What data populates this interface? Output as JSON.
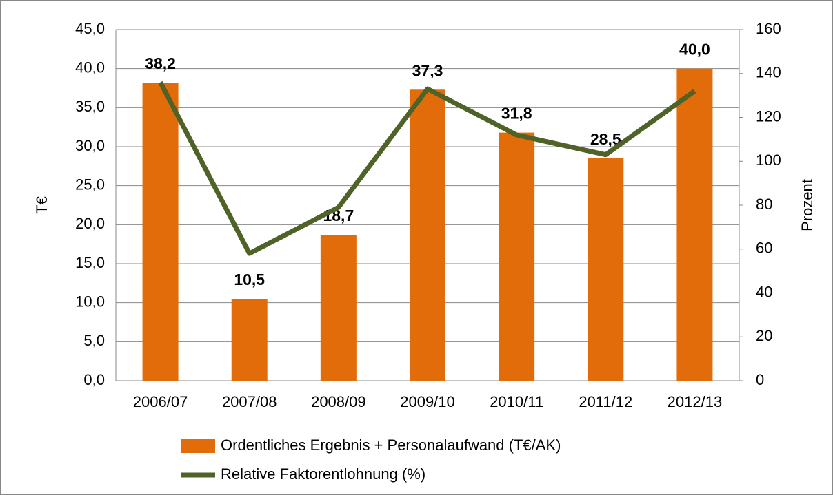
{
  "chart_data": {
    "type": "bar_line",
    "categories": [
      "2006/07",
      "2007/08",
      "2008/09",
      "2009/10",
      "2010/11",
      "2011/12",
      "2012/13"
    ],
    "series": [
      {
        "name": "Ordentliches Ergebnis + Personalaufwand (T€/AK)",
        "type": "bar",
        "color": "#e36c0a",
        "values": [
          38.2,
          10.5,
          18.7,
          37.3,
          31.8,
          28.5,
          40.0
        ],
        "value_labels": [
          "38,2",
          "10,5",
          "18,7",
          "37,3",
          "31,8",
          "28,5",
          "40,0"
        ]
      },
      {
        "name": "Relative Faktorentlohnung (%)",
        "type": "line",
        "color": "#4f6228",
        "axis": "y2",
        "values": [
          136,
          58,
          79,
          133,
          112,
          103,
          132
        ]
      }
    ],
    "ylabel": "T€",
    "y2label": "Prozent",
    "ylim": [
      0,
      45
    ],
    "yticks": [
      {
        "value": 0,
        "label": "0,0"
      },
      {
        "value": 5,
        "label": "5,0"
      },
      {
        "value": 10,
        "label": "10,0"
      },
      {
        "value": 15,
        "label": "15,0"
      },
      {
        "value": 20,
        "label": "20,0"
      },
      {
        "value": 25,
        "label": "25,0"
      },
      {
        "value": 30,
        "label": "30,0"
      },
      {
        "value": 35,
        "label": "35,0"
      },
      {
        "value": 40,
        "label": "40,0"
      },
      {
        "value": 45,
        "label": "45,0"
      }
    ],
    "y2lim": [
      0,
      160
    ],
    "y2ticks": [
      0,
      20,
      40,
      60,
      80,
      100,
      120,
      140,
      160
    ],
    "grid": true,
    "legend_position": "bottom"
  }
}
